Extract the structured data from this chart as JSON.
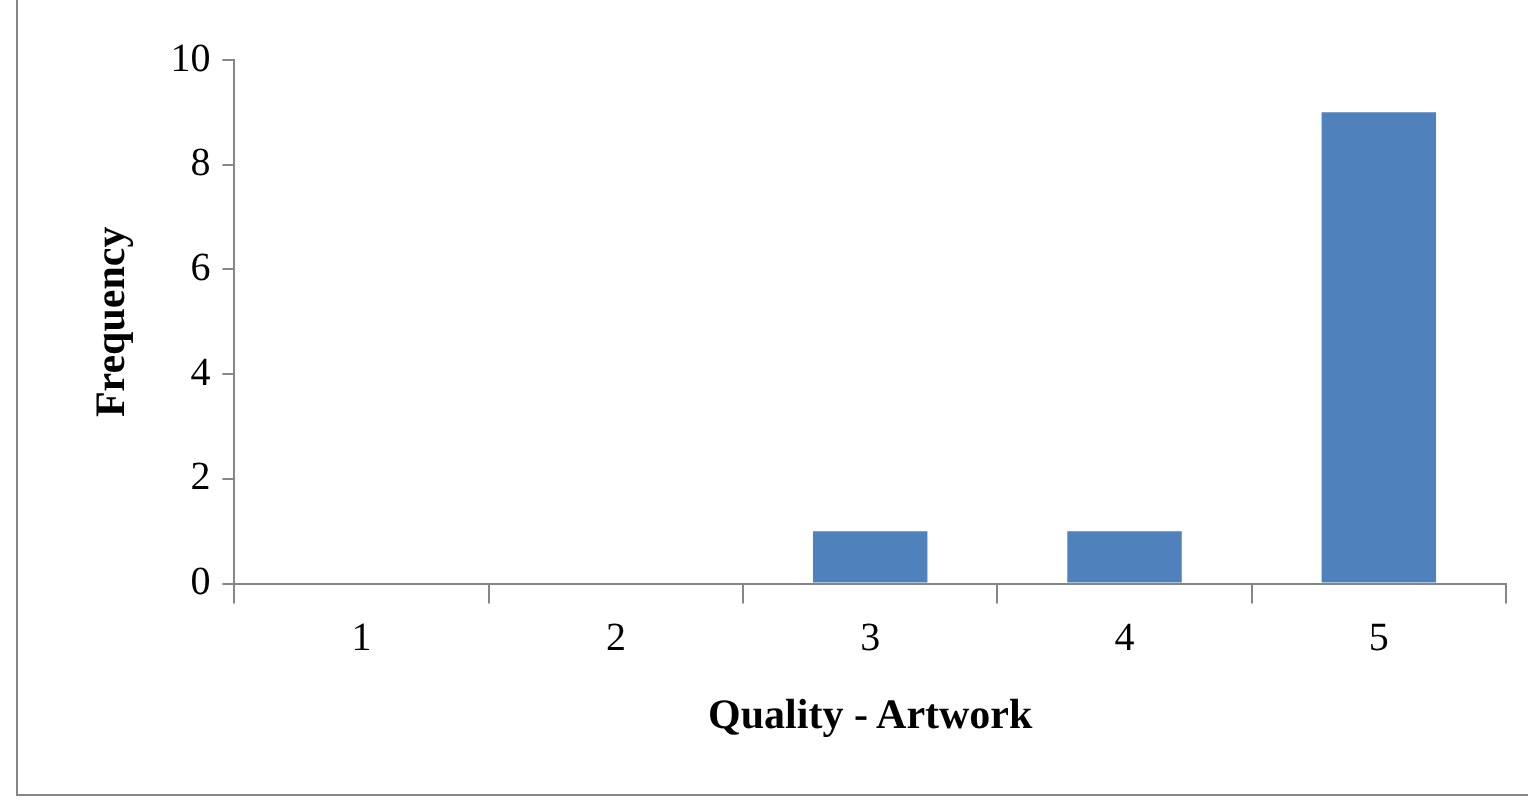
{
  "chart_data": {
    "type": "bar",
    "xlabel": "Quality - Artwork",
    "ylabel": "Frequency",
    "categories": [
      "1",
      "2",
      "3",
      "4",
      "5"
    ],
    "values": [
      0,
      0,
      1,
      1,
      9
    ],
    "color": "#4f81bd",
    "ylim": [
      0,
      10
    ],
    "yticks": [
      0,
      2,
      4,
      6,
      8,
      10
    ],
    "grid": false,
    "legend": false
  }
}
